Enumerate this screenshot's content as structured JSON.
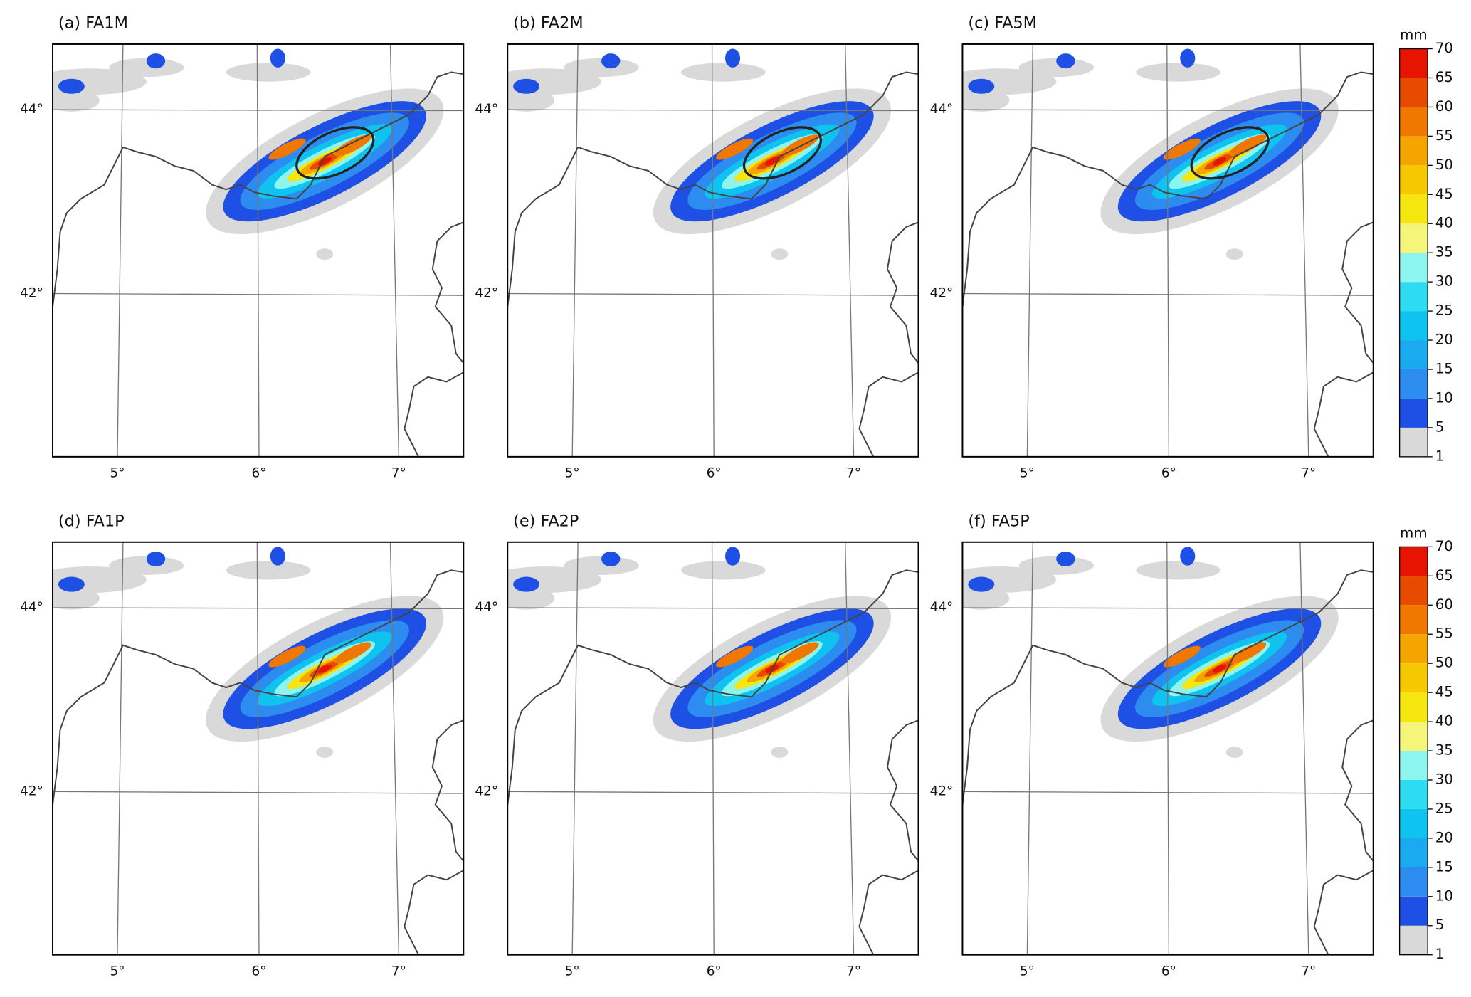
{
  "panels": [
    {
      "title": "(a) FA1M"
    },
    {
      "title": "(b) FA2M"
    },
    {
      "title": "(c) FA5M"
    },
    {
      "title": "(d) FA1P"
    },
    {
      "title": "(e) FA2P"
    },
    {
      "title": "(f) FA5P"
    }
  ],
  "lon_labels": [
    "5°",
    "6°",
    "7°"
  ],
  "lat_labels": [
    "44°",
    "42°"
  ],
  "colorbar": {
    "unit": "mm",
    "levels": [
      1,
      5,
      10,
      15,
      20,
      25,
      30,
      35,
      40,
      45,
      50,
      55,
      60,
      65,
      70
    ],
    "colors": [
      "#d9d9d9",
      "#1e50e6",
      "#2d8cf0",
      "#19aaf0",
      "#0fc3f0",
      "#2ddcf0",
      "#8cf5f0",
      "#f5f57a",
      "#f5e60f",
      "#f5c800",
      "#f5a500",
      "#f07800",
      "#e64b00",
      "#e61400"
    ]
  }
}
